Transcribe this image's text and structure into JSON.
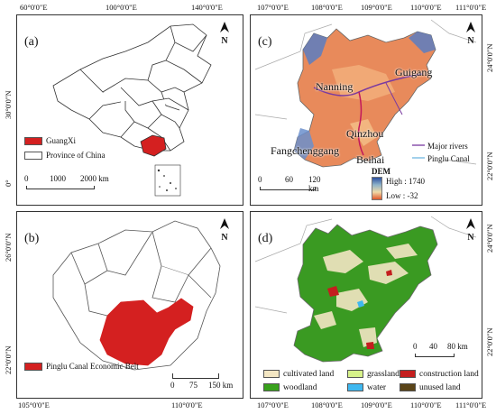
{
  "top_ticks": {
    "left": [
      "60°0'0\"E",
      "100°0'0\"E",
      "140°0'0\"E"
    ],
    "right": [
      "107°0'0\"E",
      "108°0'0\"E",
      "109°0'0\"E",
      "110°0'0\"E",
      "111°0'0\"E"
    ]
  },
  "bottom_ticks": {
    "left": [
      "105°0'0\"E",
      "110°0'0\"E"
    ],
    "right": [
      "107°0'0\"E",
      "108°0'0\"E",
      "109°0'0\"E",
      "110°0'0\"E",
      "111°0'0\"E"
    ]
  },
  "left_ticks": {
    "a": [
      "30°0'0\"N",
      "0°"
    ],
    "b": [
      "26°0'0\"N",
      "22°0'0\"N"
    ]
  },
  "right_ticks": {
    "c": [
      "24°0'0\"N",
      "22°0'0\"N"
    ],
    "d": [
      "24°0'0\"N",
      "22°0'0\"N"
    ]
  },
  "panel_a": {
    "label": "(a)",
    "north": "N",
    "legend": [
      {
        "label": "GuangXi",
        "color": "#d42020"
      },
      {
        "label": "Province of China",
        "color": "#ffffff"
      }
    ],
    "scale": [
      "0",
      "1000",
      "2000 km"
    ]
  },
  "panel_b": {
    "label": "(b)",
    "north": "N",
    "legend": [
      {
        "label": "Pinglu Canal Economic Belt",
        "color": "#d42020"
      }
    ],
    "scale": [
      "0",
      "75",
      "150 km"
    ]
  },
  "panel_c": {
    "label": "(c)",
    "north": "N",
    "cities": [
      "Nanning",
      "Guigang",
      "Qinzhou",
      "Fangchenggang",
      "Beihai"
    ],
    "rivers_legend": [
      "Major rivers",
      "Pinglu Canal"
    ],
    "dem": {
      "title": "DEM",
      "high": "High : 1740",
      "low": "Low : -32"
    },
    "scale": [
      "0",
      "60",
      "120 km"
    ]
  },
  "panel_d": {
    "label": "(d)",
    "north": "N",
    "scale": [
      "0",
      "40",
      "80 km"
    ],
    "landcover": [
      {
        "label": "cultivated land",
        "color": "#f3e6c3"
      },
      {
        "label": "grassland",
        "color": "#d7f28a"
      },
      {
        "label": "construction land",
        "color": "#c41e1e"
      },
      {
        "label": "woodland",
        "color": "#38a11c"
      },
      {
        "label": "water",
        "color": "#3fb8f0"
      },
      {
        "label": "unused land",
        "color": "#5a4418"
      }
    ]
  }
}
